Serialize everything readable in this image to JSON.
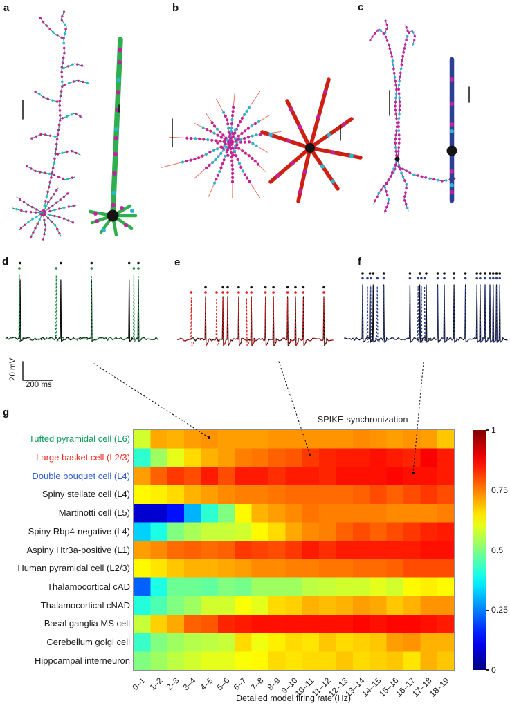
{
  "panels": {
    "a": {
      "label": "a",
      "model_color": "#2fae4e"
    },
    "b": {
      "label": "b",
      "model_color": "#ce2012"
    },
    "c": {
      "label": "c",
      "model_color": "#2b3f94"
    },
    "d": {
      "label": "d"
    },
    "e": {
      "label": "e"
    },
    "f": {
      "label": "f"
    },
    "g": {
      "label": "g"
    }
  },
  "scalebar": {
    "voltage": "20 mV",
    "time": "200 ms"
  },
  "traces": {
    "d": {
      "color": "#178a3a",
      "spikes": [
        0.09,
        0.33,
        0.56,
        0.835,
        0.865
      ],
      "black_spikes": [
        0.095,
        0.36,
        0.56,
        0.805,
        0.865
      ]
    },
    "e": {
      "color": "#e01b1b",
      "spikes": [
        0.09,
        0.18,
        0.25,
        0.29,
        0.32,
        0.39,
        0.44,
        0.47,
        0.56,
        0.61,
        0.7,
        0.75,
        0.8,
        0.93
      ],
      "black_spikes": [
        0.18,
        0.29,
        0.32,
        0.39,
        0.47,
        0.56,
        0.61,
        0.7,
        0.75,
        0.8,
        0.93
      ]
    },
    "f": {
      "color": "#2e3f92",
      "spikes": [
        0.11,
        0.14,
        0.16,
        0.2,
        0.24,
        0.4,
        0.45,
        0.47,
        0.49,
        0.57,
        0.61,
        0.67,
        0.74,
        0.81,
        0.83,
        0.86,
        0.89,
        0.91,
        0.93,
        0.95
      ],
      "black_spikes": [
        0.11,
        0.155,
        0.175,
        0.24,
        0.4,
        0.46,
        0.5,
        0.57,
        0.61,
        0.67,
        0.74,
        0.81,
        0.83,
        0.86,
        0.89,
        0.91,
        0.93,
        0.95
      ]
    }
  },
  "chart_data": {
    "type": "heatmap",
    "title": "SPIKE-synchronization",
    "xlabel": "Detailed model firing rate (Hz)",
    "value_range": [
      0,
      1
    ],
    "colormap": "jet",
    "columns": [
      "0–1",
      "1–2",
      "2–3",
      "3–4",
      "4–5",
      "5–6",
      "6–7",
      "7–8",
      "8–9",
      "9–10",
      "10–11",
      "11–12",
      "12–13",
      "13–14",
      "14–15",
      "15–16",
      "16–17",
      "17–18",
      "18–19"
    ],
    "rows": [
      {
        "label": "Tufted pyramidal cell (L6)",
        "color": "#0a9a57"
      },
      {
        "label": "Large basket cell (L2/3)",
        "color": "#ee3124"
      },
      {
        "label": "Double bouquet cell (L4)",
        "color": "#2f5bcf"
      },
      {
        "label": "Spiny stellate cell (L4)",
        "color": "#1a1a1a"
      },
      {
        "label": "Martinotti cell (L5)",
        "color": "#1a1a1a"
      },
      {
        "label": "Spiny Rbp4-negative (L4)",
        "color": "#1a1a1a"
      },
      {
        "label": "Aspiny Htr3a-positive (L1)",
        "color": "#1a1a1a"
      },
      {
        "label": "Human pyramidal cell (L2/3)",
        "color": "#1a1a1a"
      },
      {
        "label": "Thalamocortical cAD",
        "color": "#1a1a1a"
      },
      {
        "label": "Thalamocortical cNAD",
        "color": "#1a1a1a"
      },
      {
        "label": "Basal ganglia MS cell",
        "color": "#1a1a1a"
      },
      {
        "label": "Cerebellum golgi cell",
        "color": "#1a1a1a"
      },
      {
        "label": "Hippcampal interneuron",
        "color": "#1a1a1a"
      }
    ],
    "values": [
      [
        0.58,
        0.71,
        0.7,
        0.72,
        0.73,
        0.72,
        0.72,
        0.72,
        0.73,
        0.73,
        0.73,
        0.73,
        0.73,
        0.74,
        0.73,
        0.72,
        0.73,
        0.72,
        0.68
      ],
      [
        0.42,
        0.53,
        0.6,
        0.66,
        0.7,
        0.72,
        0.75,
        0.76,
        0.78,
        0.79,
        0.82,
        0.84,
        0.85,
        0.85,
        0.86,
        0.85,
        0.84,
        0.88,
        0.85
      ],
      [
        0.72,
        0.78,
        0.82,
        0.8,
        0.85,
        0.8,
        0.85,
        0.85,
        0.83,
        0.85,
        0.85,
        0.84,
        0.86,
        0.86,
        0.86,
        0.87,
        0.86,
        0.86,
        0.85
      ],
      [
        0.63,
        0.64,
        0.66,
        0.7,
        0.72,
        0.74,
        0.75,
        0.75,
        0.76,
        0.77,
        0.77,
        0.77,
        0.77,
        0.78,
        0.8,
        0.78,
        0.8,
        0.82,
        0.8
      ],
      [
        0.08,
        0.08,
        0.14,
        0.3,
        0.42,
        0.5,
        0.63,
        0.7,
        0.72,
        0.74,
        0.76,
        0.75,
        0.75,
        0.75,
        0.75,
        0.74,
        0.74,
        0.74,
        0.75
      ],
      [
        0.33,
        0.4,
        0.5,
        0.54,
        0.57,
        0.57,
        0.58,
        0.63,
        0.66,
        0.71,
        0.74,
        0.75,
        0.78,
        0.8,
        0.78,
        0.8,
        0.82,
        0.84,
        0.85
      ],
      [
        0.72,
        0.74,
        0.77,
        0.78,
        0.77,
        0.78,
        0.82,
        0.81,
        0.8,
        0.82,
        0.85,
        0.83,
        0.85,
        0.85,
        0.85,
        0.85,
        0.85,
        0.86,
        0.86
      ],
      [
        0.63,
        0.65,
        0.68,
        0.7,
        0.7,
        0.71,
        0.72,
        0.74,
        0.74,
        0.75,
        0.75,
        0.76,
        0.76,
        0.77,
        0.77,
        0.78,
        0.8,
        0.8,
        0.8
      ],
      [
        0.22,
        0.4,
        0.48,
        0.48,
        0.47,
        0.5,
        0.49,
        0.53,
        0.53,
        0.53,
        0.56,
        0.57,
        0.58,
        0.58,
        0.6,
        0.58,
        0.63,
        0.64,
        0.63
      ],
      [
        0.41,
        0.45,
        0.5,
        0.53,
        0.58,
        0.58,
        0.62,
        0.6,
        0.66,
        0.67,
        0.7,
        0.69,
        0.7,
        0.72,
        0.71,
        0.68,
        0.7,
        0.73,
        0.73
      ],
      [
        0.57,
        0.67,
        0.71,
        0.78,
        0.79,
        0.84,
        0.85,
        0.86,
        0.86,
        0.86,
        0.86,
        0.86,
        0.86,
        0.87,
        0.86,
        0.87,
        0.87,
        0.86,
        0.85
      ],
      [
        0.43,
        0.5,
        0.53,
        0.55,
        0.56,
        0.57,
        0.66,
        0.61,
        0.64,
        0.66,
        0.65,
        0.68,
        0.66,
        0.67,
        0.68,
        0.72,
        0.73,
        0.7,
        0.7
      ],
      [
        0.5,
        0.53,
        0.56,
        0.58,
        0.6,
        0.6,
        0.62,
        0.63,
        0.66,
        0.65,
        0.66,
        0.66,
        0.68,
        0.66,
        0.67,
        0.68,
        0.65,
        0.7,
        0.68
      ]
    ],
    "colorbar": {
      "ticks": [
        {
          "label": "1",
          "value": 1
        },
        {
          "label": "0.75",
          "value": 0.75
        },
        {
          "label": "0.5",
          "value": 0.5
        },
        {
          "label": "0.25",
          "value": 0.25
        },
        {
          "label": "0",
          "value": 0
        }
      ]
    }
  }
}
